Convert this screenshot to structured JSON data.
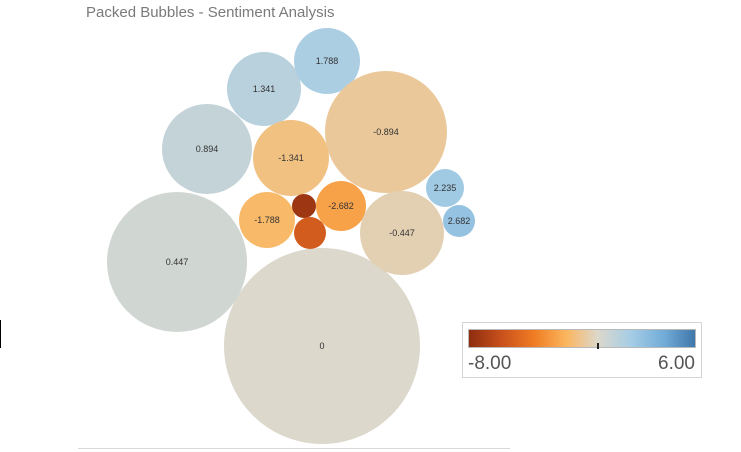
{
  "title": "Packed Bubbles - Sentiment Analysis",
  "chart_data": {
    "type": "packed-bubble",
    "title": "Packed Bubbles - Sentiment Analysis",
    "values": [
      0,
      0.447,
      0.894,
      1.341,
      1.788,
      -0.894,
      -1.341,
      2.235,
      2.682,
      -2.682,
      -1.788,
      -0.447
    ],
    "color_scale": {
      "min": -8.0,
      "max": 6.0,
      "min_label": "-8.00",
      "max_label": "6.00",
      "stops": [
        "#8e2d10",
        "#c8501c",
        "#ef7b22",
        "#fbb55d",
        "#dcd8cc",
        "#a6cde6",
        "#74aed8",
        "#3f77ab"
      ]
    }
  }
}
